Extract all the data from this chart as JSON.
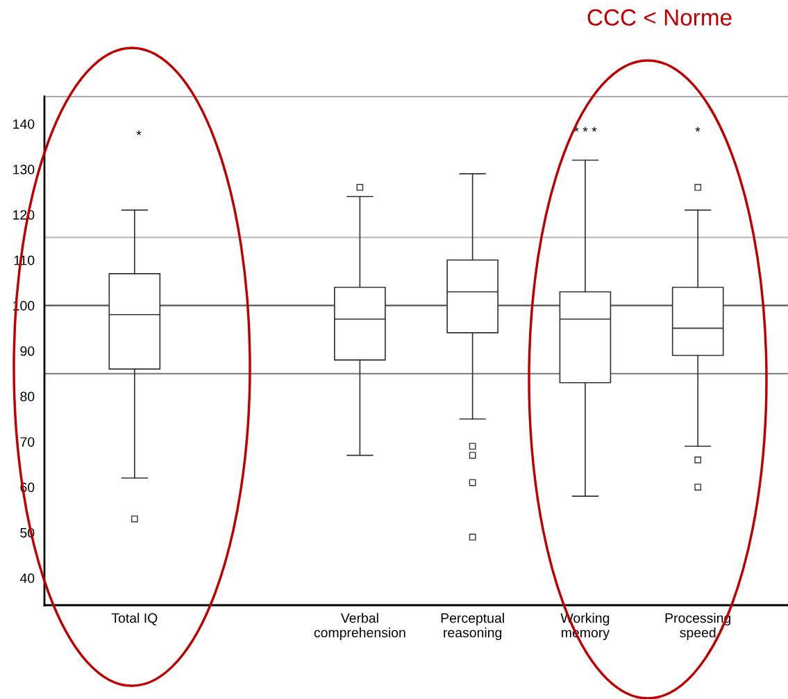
{
  "chart_data": {
    "type": "box",
    "title": "CCC < Norme",
    "categories": [
      "Total IQ",
      null,
      "Verbal\ncomprehension",
      "Perceptual\nreasoning",
      "Working\nmemory",
      "Processing\nspeed"
    ],
    "boxes": [
      {
        "low": 62,
        "q1": 86,
        "median": 98,
        "q3": 107,
        "high": 121,
        "outliers": [
          53
        ]
      },
      null,
      {
        "low": 67,
        "q1": 88,
        "median": 97,
        "q3": 104,
        "high": 124,
        "outliers": [
          126
        ]
      },
      {
        "low": 75,
        "q1": 94,
        "median": 103,
        "q3": 110,
        "high": 129,
        "outliers": [
          69,
          67,
          61,
          49
        ]
      },
      {
        "low": 58,
        "q1": 83,
        "median": 97,
        "q3": 103,
        "high": 132
      },
      {
        "low": 69,
        "q1": 89,
        "median": 95,
        "q3": 104,
        "high": 121,
        "outliers": [
          126,
          66,
          60
        ]
      }
    ],
    "ylim": [
      34,
      146
    ],
    "yticks": [
      40,
      50,
      60,
      70,
      80,
      90,
      100,
      110,
      120,
      130,
      140
    ],
    "ref_lines": [
      {
        "axis": "y",
        "value": 115,
        "label": null,
        "color": "#bbbbbb"
      },
      {
        "axis": "y",
        "value": 100,
        "label": null,
        "color": "#555555"
      },
      {
        "axis": "y",
        "value": 85,
        "label": null,
        "color": "#777777"
      }
    ],
    "annotations": [
      "*",
      "* * *",
      "*"
    ],
    "marker": "square",
    "grid": false
  }
}
